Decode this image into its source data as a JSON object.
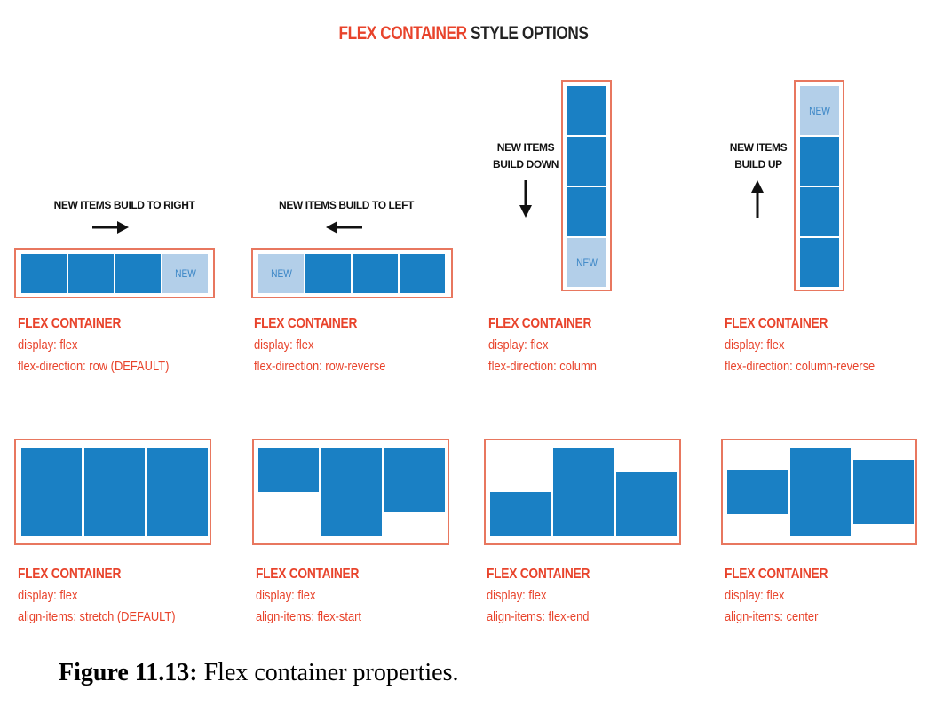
{
  "title": {
    "accent": "FLEX CONTAINER",
    "rest": "STYLE OPTIONS"
  },
  "colors": {
    "accent": "#e8432b",
    "border": "#e8775f",
    "item": "#1a80c4",
    "new_item": "#b3cfe9"
  },
  "direction_panels": [
    {
      "note": "NEW ITEMS BUILD TO RIGHT",
      "arrow": "arrow-right",
      "new_label": "NEW",
      "label_title": "FLEX CONTAINER",
      "prop1": "display: flex",
      "prop2": "flex-direction: row (DEFAULT)"
    },
    {
      "note": "NEW ITEMS BUILD TO LEFT",
      "arrow": "arrow-left",
      "new_label": "NEW",
      "label_title": "FLEX CONTAINER",
      "prop1": "display: flex",
      "prop2": "flex-direction: row-reverse"
    },
    {
      "note_line1": "NEW ITEMS",
      "note_line2": "BUILD DOWN",
      "arrow": "arrow-down",
      "new_label": "NEW",
      "label_title": "FLEX CONTAINER",
      "prop1": "display: flex",
      "prop2": "flex-direction: column"
    },
    {
      "note_line1": "NEW ITEMS",
      "note_line2": "BUILD UP",
      "arrow": "arrow-up",
      "new_label": "NEW",
      "label_title": "FLEX CONTAINER",
      "prop1": "display: flex",
      "prop2": "flex-direction: column-reverse"
    }
  ],
  "align_panels": [
    {
      "label_title": "FLEX CONTAINER",
      "prop1": "display: flex",
      "prop2": "align-items: stretch (DEFAULT)"
    },
    {
      "label_title": "FLEX CONTAINER",
      "prop1": "display: flex",
      "prop2": "align-items: flex-start"
    },
    {
      "label_title": "FLEX CONTAINER",
      "prop1": "display: flex",
      "prop2": "align-items: flex-end"
    },
    {
      "label_title": "FLEX CONTAINER",
      "prop1": "display: flex",
      "prop2": "align-items: center"
    }
  ],
  "caption": {
    "figure": "Figure 11.13:",
    "text": " Flex container properties."
  }
}
